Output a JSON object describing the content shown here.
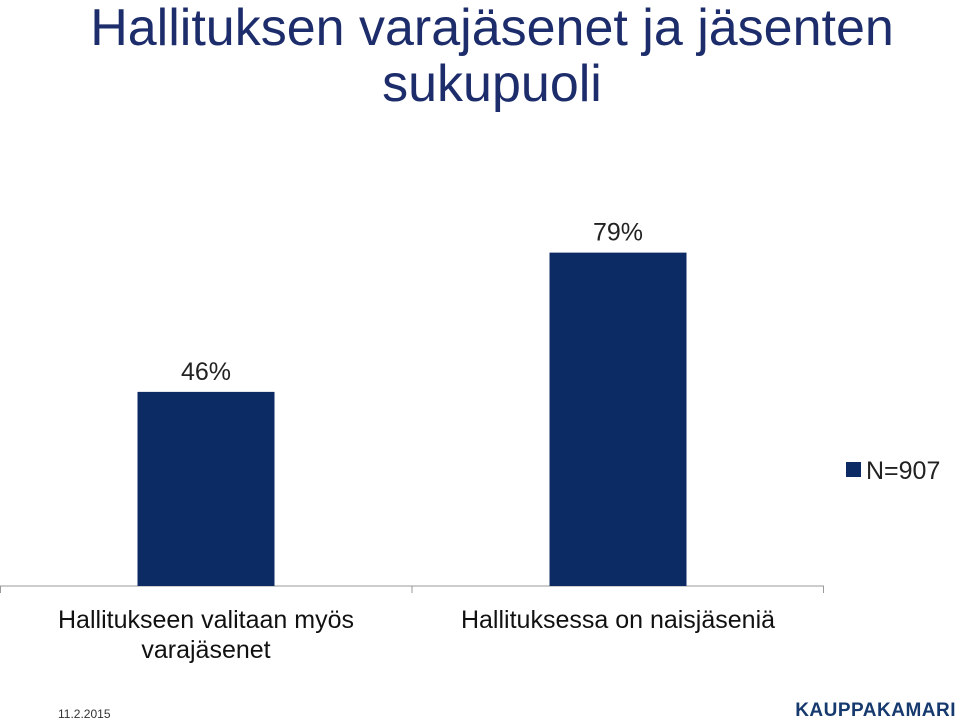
{
  "slide": {
    "title": "Hallituksen varajäsenet ja jäsenten sukupuoli",
    "footer_date": "11.2.2015",
    "logo_text": "KAUPPAKAMARI"
  },
  "chart_data": {
    "type": "bar",
    "categories": [
      "Hallitukseen valitaan myös varajäsenet",
      "Hallituksessa on naisjäseniä"
    ],
    "series": [
      {
        "name": "N=907",
        "values": [
          46,
          79
        ]
      }
    ],
    "data_labels": [
      "46%",
      "79%"
    ],
    "unit": "%",
    "ylim": [
      0,
      100
    ],
    "grid": false,
    "legend_position": "right",
    "bar_color": "#0c2a63"
  }
}
